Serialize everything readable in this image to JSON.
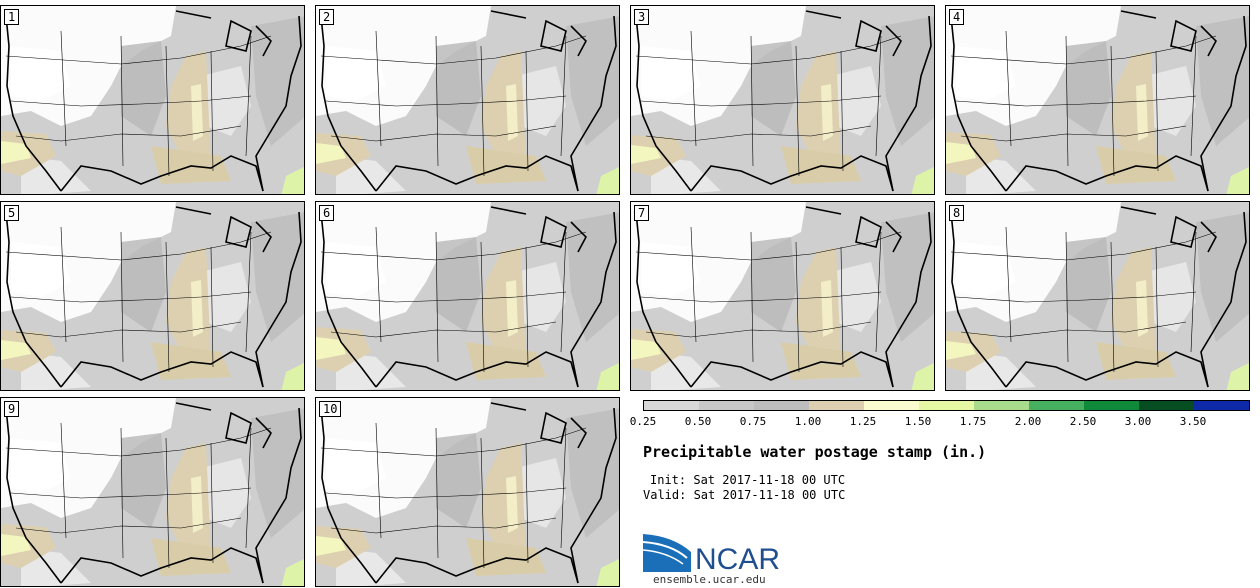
{
  "panels": [
    {
      "label": "1"
    },
    {
      "label": "2"
    },
    {
      "label": "3"
    },
    {
      "label": "4"
    },
    {
      "label": "5"
    },
    {
      "label": "6"
    },
    {
      "label": "7"
    },
    {
      "label": "8"
    },
    {
      "label": "9"
    },
    {
      "label": "10"
    }
  ],
  "colorbar": {
    "levels": [
      "0.25",
      "0.50",
      "0.75",
      "1.00",
      "1.25",
      "1.50",
      "1.75",
      "2.00",
      "2.50",
      "3.00",
      "3.50"
    ],
    "colors": [
      "#d8d8d8",
      "#c8c8c8",
      "#bdbdbd",
      "#dcd0b0",
      "#fbfbd0",
      "#e6f8a4",
      "#a8dc8c",
      "#46b060",
      "#0e8a3a",
      "#064e22",
      "#0e2aa8"
    ]
  },
  "title": "Precipitable water postage stamp (in.)",
  "init_line": "Init: Sat 2017-11-18 00 UTC",
  "valid_line": "Valid: Sat 2017-11-18 00 UTC",
  "logo": {
    "text": "NCAR",
    "url": "ensemble.ucar.edu",
    "colors": {
      "blue": "#1a6fb8",
      "text": "#1f4f8f"
    }
  }
}
